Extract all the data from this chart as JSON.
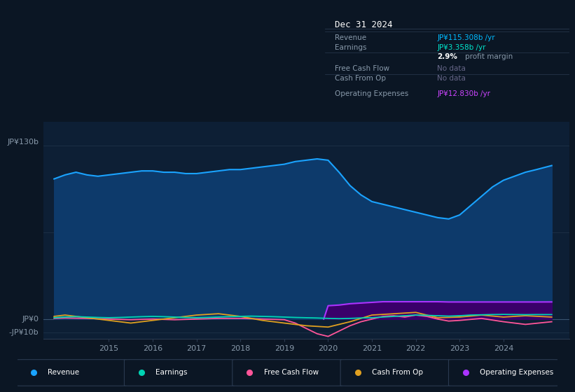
{
  "bg_color": "#0b1624",
  "plot_bg_color": "#0d1f35",
  "grid_color": "#1e3248",
  "title_text": "Dec 31 2024",
  "info_box_bg": "#080e1a",
  "info_border": "#2a3a50",
  "ylabel_top": "JP¥130b",
  "ylabel_zero": "JP¥0",
  "ylabel_neg": "-JP¥10b",
  "ylim": [
    -15,
    148
  ],
  "xlim": [
    2013.5,
    2025.5
  ],
  "x_ticks": [
    2015,
    2016,
    2017,
    2018,
    2019,
    2020,
    2021,
    2022,
    2023,
    2024
  ],
  "revenue_x": [
    2013.75,
    2014.0,
    2014.25,
    2014.5,
    2014.75,
    2015.0,
    2015.25,
    2015.5,
    2015.75,
    2016.0,
    2016.25,
    2016.5,
    2016.75,
    2017.0,
    2017.25,
    2017.5,
    2017.75,
    2018.0,
    2018.25,
    2018.5,
    2018.75,
    2019.0,
    2019.25,
    2019.5,
    2019.75,
    2020.0,
    2020.25,
    2020.5,
    2020.75,
    2021.0,
    2021.25,
    2021.5,
    2021.75,
    2022.0,
    2022.25,
    2022.5,
    2022.75,
    2023.0,
    2023.25,
    2023.5,
    2023.75,
    2024.0,
    2024.25,
    2024.5,
    2024.75,
    2025.1
  ],
  "revenue_y": [
    105,
    108,
    110,
    108,
    107,
    108,
    109,
    110,
    111,
    111,
    110,
    110,
    109,
    109,
    110,
    111,
    112,
    112,
    113,
    114,
    115,
    116,
    118,
    119,
    120,
    119,
    110,
    100,
    93,
    88,
    86,
    84,
    82,
    80,
    78,
    76,
    75,
    78,
    85,
    92,
    99,
    104,
    107,
    110,
    112,
    115
  ],
  "earnings_x": [
    2013.75,
    2014.0,
    2014.25,
    2014.5,
    2014.75,
    2015.0,
    2015.25,
    2015.5,
    2015.75,
    2016.0,
    2016.25,
    2016.5,
    2016.75,
    2017.0,
    2017.25,
    2017.5,
    2017.75,
    2018.0,
    2018.25,
    2018.5,
    2018.75,
    2019.0,
    2019.25,
    2019.5,
    2019.75,
    2020.0,
    2020.25,
    2020.5,
    2020.75,
    2021.0,
    2021.25,
    2021.5,
    2021.75,
    2022.0,
    2022.25,
    2022.5,
    2022.75,
    2023.0,
    2023.25,
    2023.5,
    2023.75,
    2024.0,
    2024.25,
    2024.5,
    2024.75,
    2025.1
  ],
  "earnings_y": [
    1.0,
    1.5,
    1.8,
    1.5,
    1.2,
    1.0,
    1.2,
    1.5,
    1.8,
    2.0,
    1.8,
    1.5,
    1.2,
    1.0,
    1.2,
    1.5,
    1.8,
    2.0,
    2.2,
    2.0,
    1.8,
    1.5,
    1.2,
    1.0,
    0.8,
    0.5,
    0.3,
    0.5,
    0.8,
    1.0,
    1.5,
    2.0,
    2.5,
    3.0,
    2.8,
    2.5,
    2.2,
    2.5,
    3.0,
    3.2,
    3.4,
    3.5,
    3.4,
    3.3,
    3.4,
    3.36
  ],
  "fcf_x": [
    2013.75,
    2014.0,
    2014.5,
    2015.0,
    2015.5,
    2016.0,
    2016.5,
    2017.0,
    2017.5,
    2018.0,
    2018.5,
    2019.0,
    2019.25,
    2019.5,
    2019.75,
    2020.0,
    2020.25,
    2020.5,
    2020.75,
    2021.0,
    2021.25,
    2021.5,
    2021.75,
    2022.0,
    2022.25,
    2022.5,
    2022.75,
    2023.0,
    2023.5,
    2024.0,
    2024.5,
    2025.1
  ],
  "fcf_y": [
    0.5,
    0.8,
    0.5,
    0.0,
    -0.5,
    0.0,
    -0.5,
    0.0,
    0.5,
    0.5,
    0.0,
    -0.5,
    -3.0,
    -7.0,
    -11.0,
    -13.0,
    -9.0,
    -5.0,
    -2.0,
    0.0,
    2.0,
    2.5,
    1.5,
    3.0,
    2.0,
    0.0,
    -1.5,
    -1.0,
    0.5,
    -2.0,
    -4.0,
    -2.0
  ],
  "cfo_x": [
    2013.75,
    2014.0,
    2014.5,
    2015.0,
    2015.5,
    2016.0,
    2016.5,
    2017.0,
    2017.5,
    2018.0,
    2018.5,
    2019.0,
    2019.5,
    2020.0,
    2020.5,
    2021.0,
    2021.5,
    2022.0,
    2022.5,
    2023.0,
    2023.5,
    2024.0,
    2024.5,
    2025.1
  ],
  "cfo_y": [
    2.0,
    3.0,
    1.0,
    -1.0,
    -3.0,
    -1.0,
    1.0,
    3.0,
    4.0,
    2.0,
    -1.0,
    -3.0,
    -5.0,
    -6.0,
    -2.0,
    3.0,
    4.0,
    5.0,
    1.0,
    1.5,
    3.0,
    1.5,
    2.5,
    1.5
  ],
  "op_x": [
    2019.9,
    2020.0,
    2020.25,
    2020.5,
    2020.75,
    2021.0,
    2021.25,
    2021.5,
    2021.75,
    2022.0,
    2022.25,
    2022.5,
    2022.75,
    2023.0,
    2023.25,
    2023.5,
    2023.75,
    2024.0,
    2024.25,
    2024.5,
    2024.75,
    2025.1
  ],
  "op_y": [
    0.0,
    10.0,
    10.5,
    11.5,
    12.0,
    12.5,
    13.0,
    13.0,
    13.0,
    13.0,
    13.0,
    13.0,
    12.8,
    12.8,
    12.8,
    12.8,
    12.8,
    12.8,
    12.8,
    12.8,
    12.8,
    12.83
  ],
  "revenue_color": "#1aa3ff",
  "revenue_fill": "#0d3a6b",
  "earnings_color": "#00d4b4",
  "fcf_color": "#ff5599",
  "cfo_color": "#e0a020",
  "op_color": "#aa33ff",
  "op_fill": "#3a006a",
  "legend_items": [
    {
      "label": "Revenue",
      "color": "#1aa3ff"
    },
    {
      "label": "Earnings",
      "color": "#00d4b4"
    },
    {
      "label": "Free Cash Flow",
      "color": "#ff5599"
    },
    {
      "label": "Cash From Op",
      "color": "#e0a020"
    },
    {
      "label": "Operating Expenses",
      "color": "#aa33ff"
    }
  ]
}
